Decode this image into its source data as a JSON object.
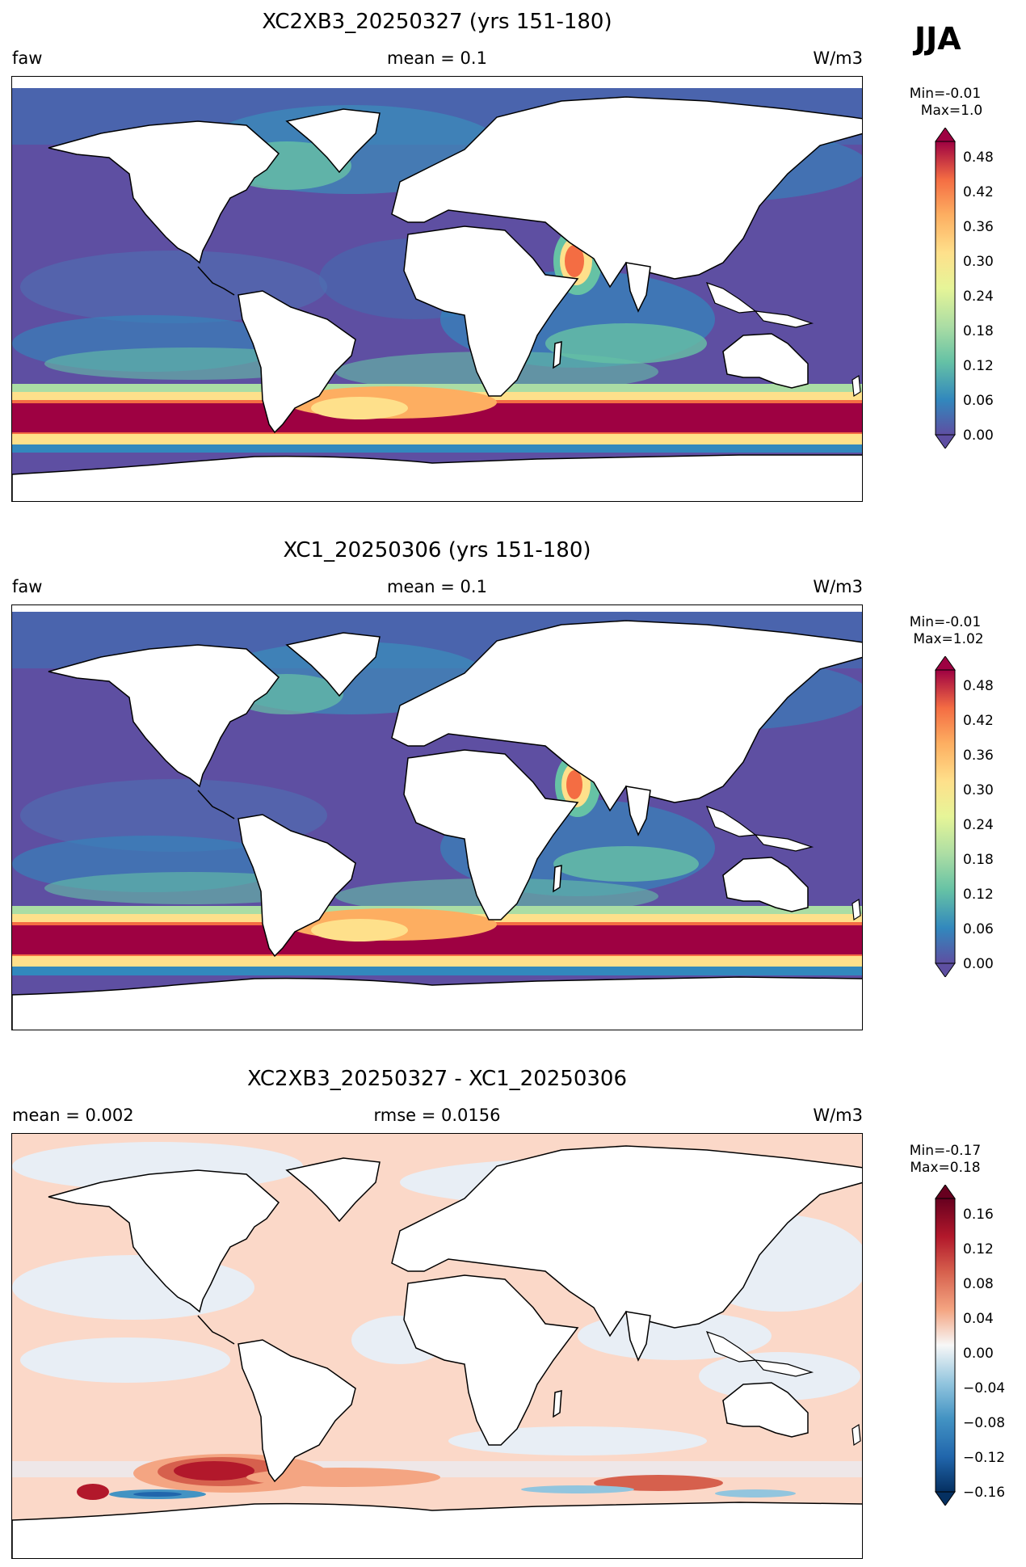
{
  "season": "JJA",
  "panels": [
    {
      "title": "XC2XB3_20250327 (yrs 151-180)",
      "left_label": "faw",
      "center_label": "mean = 0.1",
      "right_label": "W/m3",
      "min_label": "Min=-0.01",
      "max_label": "Max=1.0",
      "colormap": "Spectral_r",
      "colorbar_ticks": [
        "0.00",
        "0.06",
        "0.12",
        "0.18",
        "0.24",
        "0.30",
        "0.36",
        "0.42",
        "0.48"
      ]
    },
    {
      "title": "XC1_20250306 (yrs 151-180)",
      "left_label": "faw",
      "center_label": "mean = 0.1",
      "right_label": "W/m3",
      "min_label": "Min=-0.01",
      "max_label": "Max=1.02",
      "colormap": "Spectral_r",
      "colorbar_ticks": [
        "0.00",
        "0.06",
        "0.12",
        "0.18",
        "0.24",
        "0.30",
        "0.36",
        "0.42",
        "0.48"
      ]
    },
    {
      "title": "XC2XB3_20250327 - XC1_20250306",
      "left_label": "mean = 0.002",
      "center_label": "rmse = 0.0156",
      "right_label": "W/m3",
      "min_label": "Min=-0.17",
      "max_label": "Max=0.18",
      "colormap": "RdBu_r",
      "colorbar_ticks": [
        "−0.16",
        "−0.12",
        "−0.08",
        "−0.04",
        "0.00",
        "0.04",
        "0.08",
        "0.12",
        "0.16"
      ]
    }
  ]
}
